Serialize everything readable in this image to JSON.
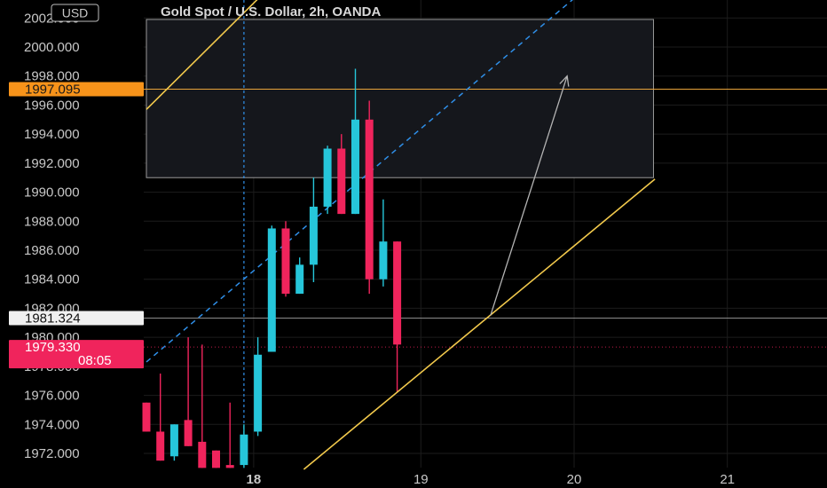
{
  "header": {
    "currency_badge": "USD",
    "title": "Gold Spot / U.S. Dollar, 2h, OANDA"
  },
  "colors": {
    "up": "#26c6da",
    "down": "#f0245c",
    "channel": "#f2c94c",
    "midline": "#2f8fe8",
    "grid": "#1c1c1c",
    "zone_fill": "#15171c",
    "zone_border": "#9a9a9a",
    "projection": "#b4b4b4",
    "hline_orange": "#e8a33a",
    "hline_white": "#8a8a8a",
    "badge_orange": "#f7931a",
    "badge_white": "#f0f0f0",
    "badge_red": "#f0245c"
  },
  "price_badges": {
    "target": "1997.095",
    "support": "1981.324",
    "last": "1979.330",
    "countdown": "08:05"
  },
  "chart_data": {
    "type": "candlestick",
    "title": "Gold Spot / U.S. Dollar, 2h, OANDA",
    "y_ticks": [
      "1972.000",
      "1974.000",
      "1976.000",
      "1978.000",
      "1980.000",
      "1982.000",
      "1984.000",
      "1986.000",
      "1988.000",
      "1990.000",
      "1992.000",
      "1994.000",
      "1996.000",
      "1998.000",
      "2000.000",
      "2002.000"
    ],
    "x_ticks": [
      "18",
      "19",
      "20",
      "21"
    ],
    "ylim": [
      1970.9,
      2003.6
    ],
    "candles": [
      {
        "t": 0,
        "o": 1975.5,
        "h": 1975.5,
        "l": 1973.5,
        "c": 1973.5
      },
      {
        "t": 1,
        "o": 1973.5,
        "h": 1977.5,
        "l": 1971.5,
        "c": 1971.5
      },
      {
        "t": 2,
        "o": 1971.8,
        "h": 1974.0,
        "l": 1971.5,
        "c": 1974.0
      },
      {
        "t": 3,
        "o": 1974.3,
        "h": 1980.0,
        "l": 1972.5,
        "c": 1972.5
      },
      {
        "t": 4,
        "o": 1972.8,
        "h": 1979.5,
        "l": 1971.0,
        "c": 1971.0
      },
      {
        "t": 5,
        "o": 1972.2,
        "h": 1972.2,
        "l": 1971.0,
        "c": 1971.0
      },
      {
        "t": 6,
        "o": 1971.2,
        "h": 1975.5,
        "l": 1971.0,
        "c": 1971.0
      },
      {
        "t": 7,
        "o": 1971.2,
        "h": 1974.0,
        "l": 1971.0,
        "c": 1973.3
      },
      {
        "t": 8,
        "o": 1973.5,
        "h": 1980.0,
        "l": 1973.2,
        "c": 1978.8
      },
      {
        "t": 9,
        "o": 1979.0,
        "h": 1987.7,
        "l": 1979.0,
        "c": 1987.5
      },
      {
        "t": 10,
        "o": 1987.5,
        "h": 1988.0,
        "l": 1982.8,
        "c": 1983.0
      },
      {
        "t": 11,
        "o": 1983.0,
        "h": 1985.5,
        "l": 1983.0,
        "c": 1985.0
      },
      {
        "t": 12,
        "o": 1985.0,
        "h": 1991.0,
        "l": 1983.8,
        "c": 1989.0
      },
      {
        "t": 13,
        "o": 1989.0,
        "h": 1993.2,
        "l": 1988.5,
        "c": 1993.0
      },
      {
        "t": 14,
        "o": 1993.0,
        "h": 1994.0,
        "l": 1988.5,
        "c": 1988.5
      },
      {
        "t": 15,
        "o": 1988.5,
        "h": 1998.5,
        "l": 1988.5,
        "c": 1995.0
      },
      {
        "t": 16,
        "o": 1995.0,
        "h": 1996.3,
        "l": 1983.0,
        "c": 1984.0
      },
      {
        "t": 17,
        "o": 1984.0,
        "h": 1989.5,
        "l": 1983.5,
        "c": 1986.6
      },
      {
        "t": 18,
        "o": 1986.6,
        "h": 1986.6,
        "l": 1976.2,
        "c": 1979.5
      }
    ],
    "channel_lower": {
      "p1": {
        "t": 11.3,
        "price": 1970.9
      },
      "p2": {
        "t": 36.5,
        "price": 1990.9
      }
    },
    "channel_upper": {
      "p1": {
        "t": 0,
        "price": 1995.7
      },
      "p2": {
        "t": 8.3,
        "price": 2003.6
      }
    },
    "midline": {
      "p1": {
        "t": 0,
        "price": 1978.3
      },
      "p2": {
        "t": 31.0,
        "price": 2003.6
      }
    },
    "vertical_marker_t": 7.0,
    "zone": {
      "t0": 0,
      "t1": 36.4,
      "top": 2001.9,
      "bottom": 1991.0
    },
    "hline_target": 1997.095,
    "hline_support": 1981.324,
    "hline_last": 1979.33,
    "projection": {
      "from": {
        "t": 24.7,
        "price": 1981.5
      },
      "to": {
        "t": 30.2,
        "price": 1998.0
      }
    }
  }
}
